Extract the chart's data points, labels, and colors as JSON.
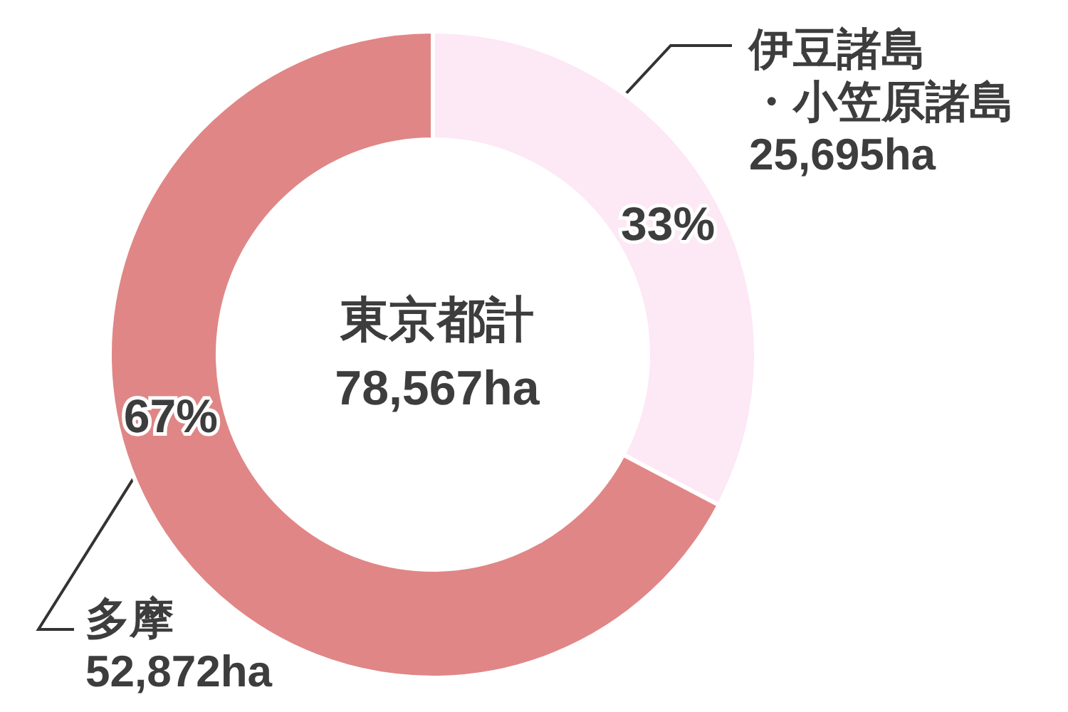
{
  "chart_data": {
    "type": "donut",
    "title": "東京都計",
    "subtitle": "78,567ha",
    "categories": [
      "伊豆諸島・小笠原諸島",
      "多摩"
    ],
    "values": [
      25695,
      52872
    ],
    "value_labels": [
      "25,695ha",
      "52,872ha"
    ],
    "colors": [
      "#fde8f5",
      "#e08686"
    ],
    "annotations": [
      "33%",
      "67%"
    ],
    "legend": false
  }
}
